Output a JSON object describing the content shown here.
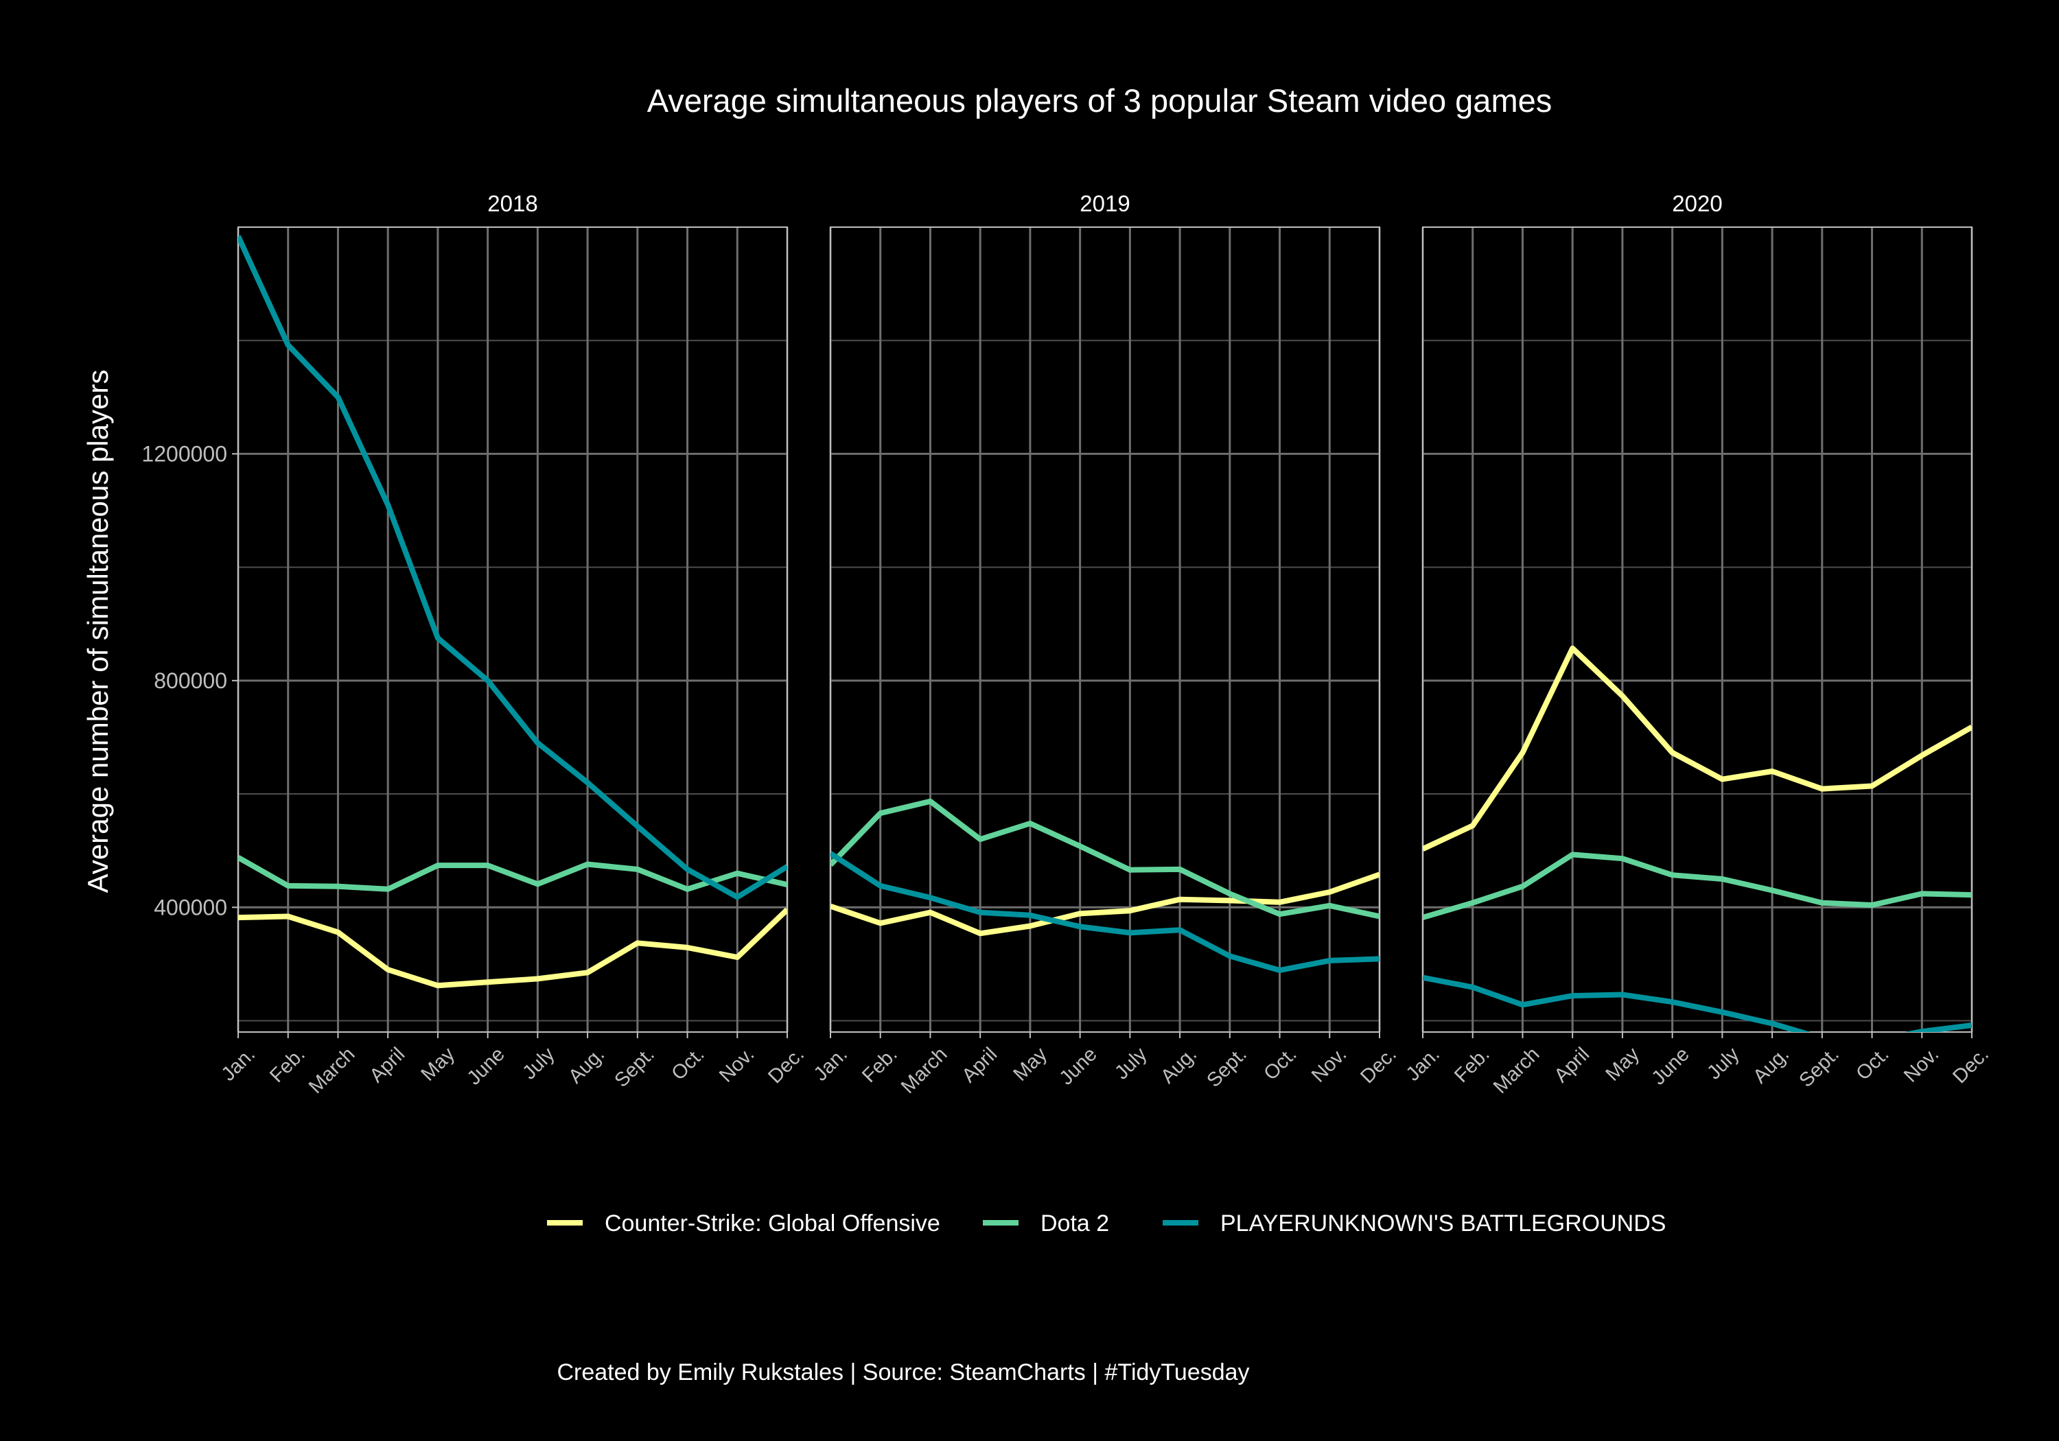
{
  "chart_data": {
    "type": "line",
    "title": "Average simultaneous players of 3 popular Steam video games",
    "ylabel": "Average number of simultaneous players",
    "xlabel": "",
    "caption": "Created by Emily Rukstales | Source: SteamCharts | #TidyTuesday",
    "months": [
      "Jan.",
      "Feb.",
      "March",
      "April",
      "May",
      "June",
      "July",
      "Aug.",
      "Sept.",
      "Oct.",
      "Nov.",
      "Dec."
    ],
    "y_ticks": [
      400000,
      800000,
      1200000
    ],
    "ylim": [
      180000,
      1600000
    ],
    "grid": true,
    "legend_position": "bottom",
    "series_meta": [
      {
        "name": "Counter-Strike: Global Offensive",
        "color": "#FFFF8C"
      },
      {
        "name": "Dota 2",
        "color": "#61D39A"
      },
      {
        "name": "PLAYERUNKNOWN'S BATTLEGROUNDS",
        "color": "#00939E"
      }
    ],
    "panels": [
      {
        "label": "2018",
        "series": [
          {
            "name": "Counter-Strike: Global Offensive",
            "values": [
              382000,
              384000,
              356000,
              290000,
              262000,
              268000,
              274000,
              285000,
              337000,
              329000,
              312000,
              396000
            ]
          },
          {
            "name": "Dota 2",
            "values": [
              488000,
              438000,
              437000,
              432000,
              474000,
              474000,
              441000,
              476000,
              467000,
              432000,
              460000,
              440000
            ]
          },
          {
            "name": "PLAYERUNKNOWN'S BATTLEGROUNDS",
            "values": [
              1584000,
              1392000,
              1300000,
              1110000,
              875000,
              800000,
              690000,
              620000,
              543000,
              467000,
              418000,
              472000
            ]
          }
        ]
      },
      {
        "label": "2019",
        "series": [
          {
            "name": "Counter-Strike: Global Offensive",
            "values": [
              402000,
              372000,
              391000,
              354000,
              367000,
              389000,
              394000,
              414000,
              412000,
              409000,
              427000,
              458000
            ]
          },
          {
            "name": "Dota 2",
            "values": [
              475000,
              566000,
              587000,
              520000,
              548000,
              508000,
              466000,
              467000,
              424000,
              388000,
              403000,
              384000
            ]
          },
          {
            "name": "PLAYERUNKNOWN'S BATTLEGROUNDS",
            "values": [
              495000,
              438000,
              417000,
              391000,
              386000,
              366000,
              355000,
              360000,
              314000,
              289000,
              306000,
              309000
            ]
          }
        ]
      },
      {
        "label": "2020",
        "series": [
          {
            "name": "Counter-Strike: Global Offensive",
            "values": [
              503000,
              544000,
              673000,
              857000,
              773000,
              673000,
              626000,
              640000,
              609000,
              614000,
              668000,
              718000
            ]
          },
          {
            "name": "Dota 2",
            "values": [
              382000,
              408000,
              437000,
              493000,
              486000,
              457000,
              450000,
              430000,
              408000,
              404000,
              424000,
              422000
            ]
          },
          {
            "name": "PLAYERUNKNOWN'S BATTLEGROUNDS",
            "values": [
              276000,
              259000,
              228000,
              244000,
              246000,
              233000,
              215000,
              195000,
              169000,
              164000,
              181000,
              192000
            ]
          }
        ]
      }
    ]
  }
}
